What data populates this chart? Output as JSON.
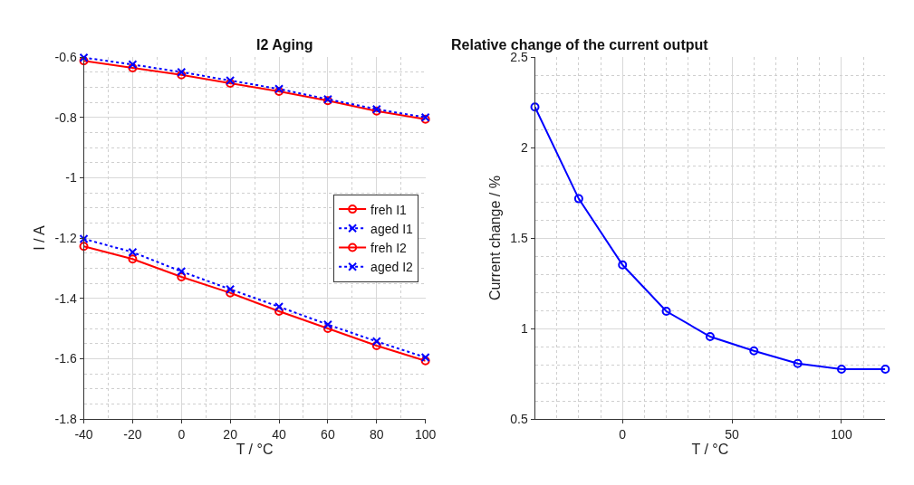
{
  "chart_data": [
    {
      "type": "line",
      "title": "I2 Aging",
      "xlabel": "T / °C",
      "ylabel": "I / A",
      "x": [
        -40,
        -20,
        0,
        20,
        40,
        60,
        80,
        100
      ],
      "xlim": [
        -40,
        100
      ],
      "xticks": [
        -40,
        -20,
        0,
        20,
        40,
        60,
        80,
        100
      ],
      "ylim": [
        -1.8,
        -0.6
      ],
      "yticks": [
        -1.8,
        -1.6,
        -1.4,
        -1.2,
        -1,
        -0.8,
        -0.6
      ],
      "grid": true,
      "legend": "right",
      "series": [
        {
          "name": "freh I1",
          "color": "#ff0000",
          "marker": "circle",
          "line_style": "solid",
          "values": [
            -0.613,
            -0.636,
            -0.659,
            -0.687,
            -0.714,
            -0.745,
            -0.779,
            -0.806
          ]
        },
        {
          "name": "aged I1",
          "color": "#0000ff",
          "marker": "cross",
          "line_style": "dotted",
          "values": [
            -0.602,
            -0.625,
            -0.65,
            -0.678,
            -0.706,
            -0.74,
            -0.773,
            -0.8
          ]
        },
        {
          "name": "freh I2",
          "color": "#ff0000",
          "marker": "circle",
          "line_style": "solid",
          "values": [
            -1.228,
            -1.27,
            -1.329,
            -1.382,
            -1.443,
            -1.5,
            -1.557,
            -1.607
          ]
        },
        {
          "name": "aged I2",
          "color": "#0000ff",
          "marker": "cross",
          "line_style": "dotted",
          "values": [
            -1.203,
            -1.247,
            -1.311,
            -1.37,
            -1.428,
            -1.487,
            -1.543,
            -1.596
          ]
        }
      ]
    },
    {
      "type": "line",
      "title": "Relative change of the current output",
      "xlabel": "T / °C",
      "ylabel": "Current change / %",
      "x": [
        -40,
        -20,
        0,
        20,
        40,
        60,
        80,
        100,
        120
      ],
      "xlim": [
        -40,
        120
      ],
      "xticks": [
        0,
        50,
        100
      ],
      "ylim": [
        0.5,
        2.5
      ],
      "yticks": [
        0.5,
        1,
        1.5,
        2,
        2.5
      ],
      "grid": true,
      "legend": false,
      "series": [
        {
          "color": "#0000ff",
          "marker": "circle",
          "line_style": "solid",
          "values": [
            2.224,
            1.717,
            1.351,
            1.095,
            0.955,
            0.876,
            0.806,
            0.775,
            0.775
          ]
        }
      ]
    }
  ]
}
